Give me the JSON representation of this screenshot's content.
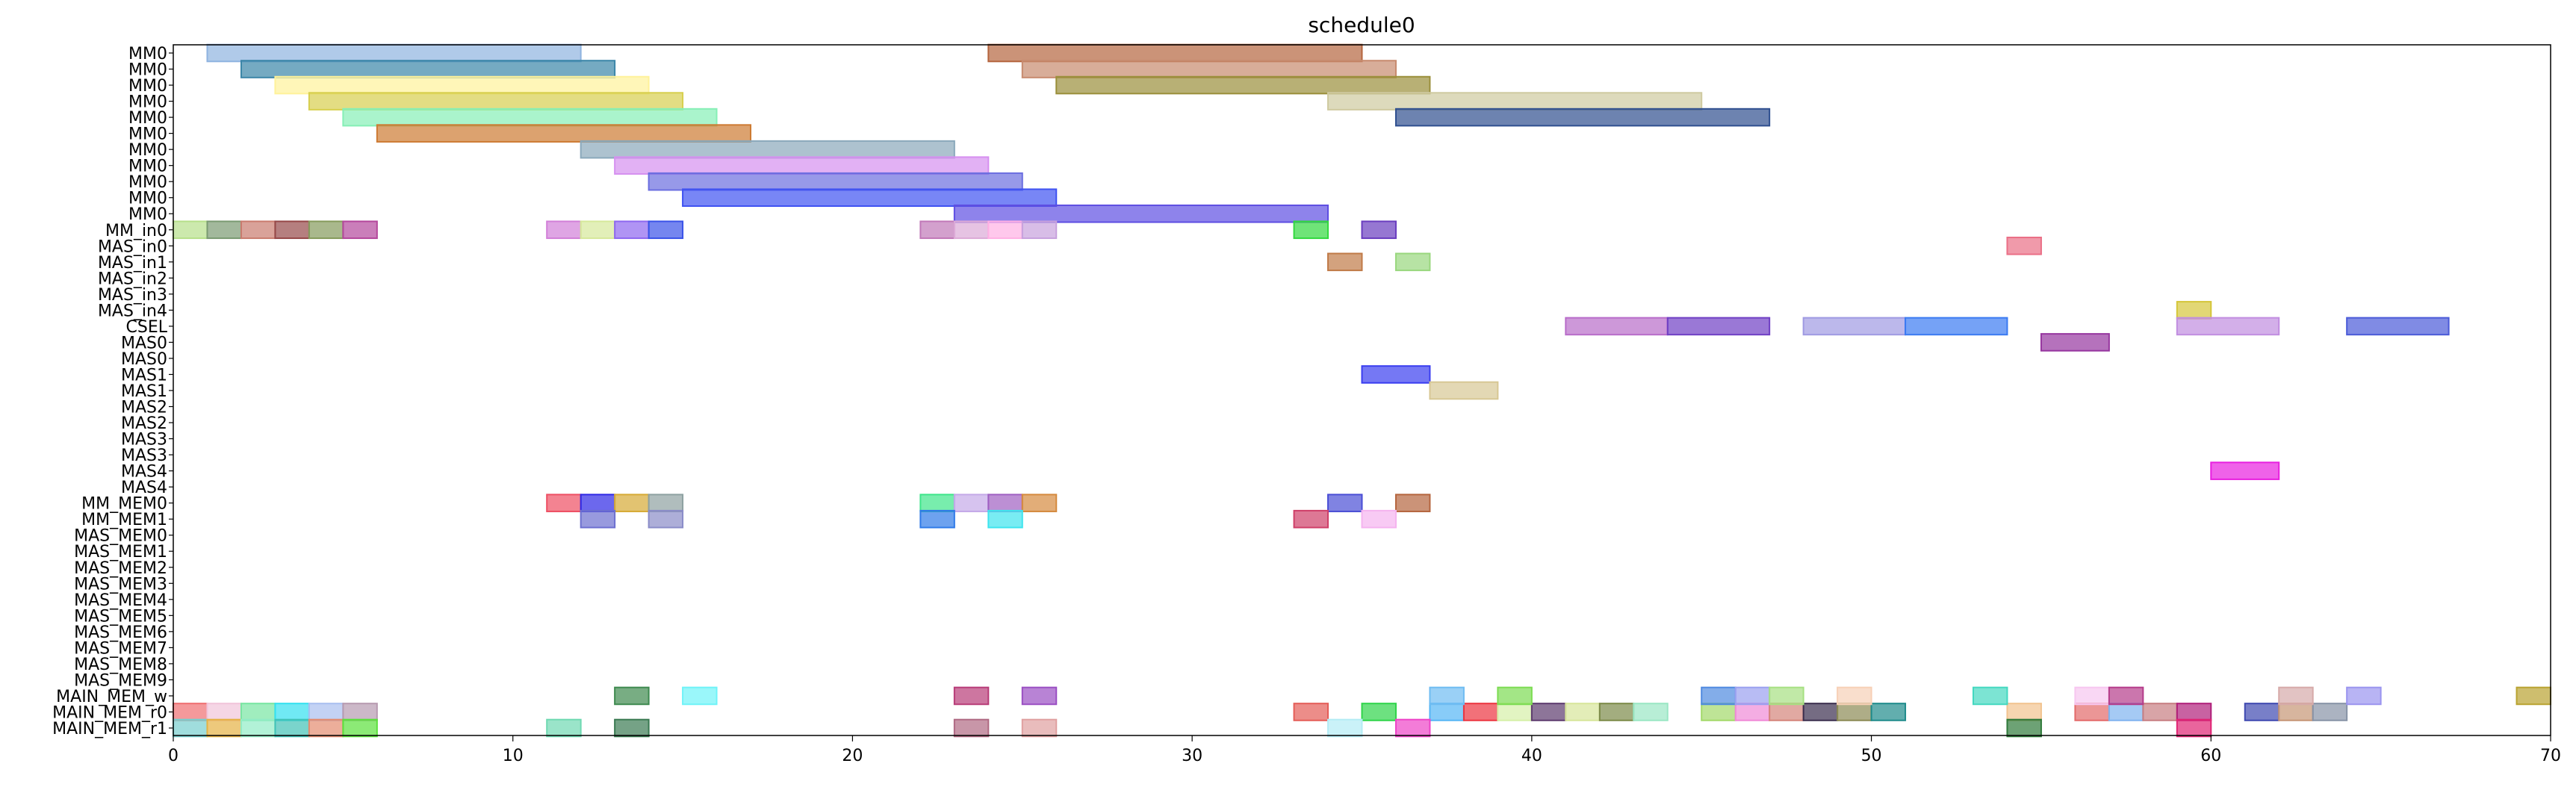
{
  "chart_data": {
    "type": "gantt",
    "title": "schedule0",
    "xlabel": "",
    "ylabel": "",
    "xlim": [
      0,
      70
    ],
    "grid": false,
    "x_ticks": [
      0,
      10,
      20,
      30,
      40,
      50,
      60,
      70
    ],
    "rows": [
      "MM0",
      "MM0",
      "MM0",
      "MM0",
      "MM0",
      "MM0",
      "MM0",
      "MM0",
      "MM0",
      "MM0",
      "MM0",
      "MM_in0",
      "MAS_in0",
      "MAS_in1",
      "MAS_in2",
      "MAS_in3",
      "MAS_in4",
      "CSEL",
      "MAS0",
      "MAS0",
      "MAS1",
      "MAS1",
      "MAS2",
      "MAS2",
      "MAS3",
      "MAS3",
      "MAS4",
      "MAS4",
      "MM_MEM0",
      "MM_MEM1",
      "MAS_MEM0",
      "MAS_MEM1",
      "MAS_MEM2",
      "MAS_MEM3",
      "MAS_MEM4",
      "MAS_MEM5",
      "MAS_MEM6",
      "MAS_MEM7",
      "MAS_MEM8",
      "MAS_MEM9",
      "MAIN_MEM_w",
      "MAIN_MEM_r0",
      "MAIN_MEM_r1"
    ],
    "bars": [
      {
        "row": 0,
        "start": 1,
        "end": 12,
        "color": "#8fb3e0"
      },
      {
        "row": 0,
        "start": 24,
        "end": 35,
        "color": "#b5653e"
      },
      {
        "row": 1,
        "start": 2,
        "end": 13,
        "color": "#3b86a8"
      },
      {
        "row": 1,
        "start": 25,
        "end": 36,
        "color": "#c78a6e"
      },
      {
        "row": 2,
        "start": 3,
        "end": 14,
        "color": "#fff29a"
      },
      {
        "row": 2,
        "start": 26,
        "end": 37,
        "color": "#9a8f3a"
      },
      {
        "row": 3,
        "start": 4,
        "end": 15,
        "color": "#d7cf4e"
      },
      {
        "row": 3,
        "start": 34,
        "end": 45,
        "color": "#cfcaa0"
      },
      {
        "row": 4,
        "start": 5,
        "end": 16,
        "color": "#86efb6"
      },
      {
        "row": 4,
        "start": 36,
        "end": 47,
        "color": "#2f4f8f"
      },
      {
        "row": 5,
        "start": 6,
        "end": 17,
        "color": "#cd7a32"
      },
      {
        "row": 6,
        "start": 12,
        "end": 23,
        "color": "#8aa8bb"
      },
      {
        "row": 7,
        "start": 13,
        "end": 24,
        "color": "#d690f0"
      },
      {
        "row": 8,
        "start": 14,
        "end": 25,
        "color": "#6b6ee0"
      },
      {
        "row": 9,
        "start": 15,
        "end": 26,
        "color": "#3f52f2"
      },
      {
        "row": 10,
        "start": 23,
        "end": 34,
        "color": "#5e4ee2"
      },
      {
        "row": 11,
        "start": 0,
        "end": 1,
        "color": "#b6df8a"
      },
      {
        "row": 11,
        "start": 1,
        "end": 2,
        "color": "#7a9a72"
      },
      {
        "row": 11,
        "start": 2,
        "end": 3,
        "color": "#c97b6e"
      },
      {
        "row": 11,
        "start": 3,
        "end": 4,
        "color": "#964848"
      },
      {
        "row": 11,
        "start": 4,
        "end": 5,
        "color": "#859a5b"
      },
      {
        "row": 11,
        "start": 5,
        "end": 6,
        "color": "#b4479c"
      },
      {
        "row": 11,
        "start": 11,
        "end": 12,
        "color": "#d27fd8"
      },
      {
        "row": 11,
        "start": 12,
        "end": 13,
        "color": "#d6e89a"
      },
      {
        "row": 11,
        "start": 13,
        "end": 14,
        "color": "#8e67f0"
      },
      {
        "row": 11,
        "start": 14,
        "end": 15,
        "color": "#3a52e8"
      },
      {
        "row": 11,
        "start": 22,
        "end": 23,
        "color": "#c178b8"
      },
      {
        "row": 11,
        "start": 23,
        "end": 24,
        "color": "#dcaad7"
      },
      {
        "row": 11,
        "start": 24,
        "end": 25,
        "color": "#ffb0e4"
      },
      {
        "row": 11,
        "start": 25,
        "end": 26,
        "color": "#c7a1dd"
      },
      {
        "row": 11,
        "start": 33,
        "end": 34,
        "color": "#32d93f"
      },
      {
        "row": 11,
        "start": 35,
        "end": 36,
        "color": "#6a3dbf"
      },
      {
        "row": 12,
        "start": 54,
        "end": 55,
        "color": "#ea6f86"
      },
      {
        "row": 13,
        "start": 34,
        "end": 35,
        "color": "#c07a47"
      },
      {
        "row": 13,
        "start": 36,
        "end": 37,
        "color": "#99d77e"
      },
      {
        "row": 16,
        "start": 59,
        "end": 60,
        "color": "#d5c63a"
      },
      {
        "row": 17,
        "start": 41,
        "end": 44,
        "color": "#b86cc9"
      },
      {
        "row": 17,
        "start": 44,
        "end": 47,
        "color": "#6f3fc4"
      },
      {
        "row": 17,
        "start": 48,
        "end": 51,
        "color": "#9f9ae2"
      },
      {
        "row": 17,
        "start": 51,
        "end": 54,
        "color": "#3a7af2"
      },
      {
        "row": 17,
        "start": 59,
        "end": 62,
        "color": "#c18de0"
      },
      {
        "row": 17,
        "start": 64,
        "end": 67,
        "color": "#4a5ad8"
      },
      {
        "row": 18,
        "start": 55,
        "end": 57,
        "color": "#96369f"
      },
      {
        "row": 20,
        "start": 35,
        "end": 37,
        "color": "#3a3ef0"
      },
      {
        "row": 21,
        "start": 37,
        "end": 39,
        "color": "#d7c794"
      },
      {
        "row": 26,
        "start": 60,
        "end": 62,
        "color": "#e81fe0"
      },
      {
        "row": 28,
        "start": 11,
        "end": 12,
        "color": "#ee4f63"
      },
      {
        "row": 28,
        "start": 12,
        "end": 13,
        "color": "#2e28e5"
      },
      {
        "row": 28,
        "start": 13,
        "end": 14,
        "color": "#d6aa35"
      },
      {
        "row": 28,
        "start": 14,
        "end": 15,
        "color": "#8ea1a1"
      },
      {
        "row": 28,
        "start": 22,
        "end": 23,
        "color": "#3ee58a"
      },
      {
        "row": 28,
        "start": 23,
        "end": 24,
        "color": "#c4a9e8"
      },
      {
        "row": 28,
        "start": 24,
        "end": 25,
        "color": "#9f60c2"
      },
      {
        "row": 28,
        "start": 25,
        "end": 26,
        "color": "#d58a3e"
      },
      {
        "row": 28,
        "start": 34,
        "end": 35,
        "color": "#4a4ed5"
      },
      {
        "row": 28,
        "start": 36,
        "end": 37,
        "color": "#b5653e"
      },
      {
        "row": 29,
        "start": 12,
        "end": 13,
        "color": "#6c6fd0"
      },
      {
        "row": 29,
        "start": 14,
        "end": 15,
        "color": "#8a8cc8"
      },
      {
        "row": 29,
        "start": 22,
        "end": 23,
        "color": "#2f7ae8"
      },
      {
        "row": 29,
        "start": 24,
        "end": 25,
        "color": "#3ee4ee"
      },
      {
        "row": 29,
        "start": 33,
        "end": 34,
        "color": "#cf3f68"
      },
      {
        "row": 29,
        "start": 35,
        "end": 36,
        "color": "#f5b3ef"
      },
      {
        "row": 40,
        "start": 13,
        "end": 14,
        "color": "#3e8a4f"
      },
      {
        "row": 40,
        "start": 15,
        "end": 16,
        "color": "#6ff3f8"
      },
      {
        "row": 40,
        "start": 23,
        "end": 24,
        "color": "#b83c78"
      },
      {
        "row": 40,
        "start": 25,
        "end": 26,
        "color": "#9a4fc3"
      },
      {
        "row": 41,
        "start": 0,
        "end": 1,
        "color": "#ef6e70"
      },
      {
        "row": 41,
        "start": 1,
        "end": 2,
        "color": "#f1c4da"
      },
      {
        "row": 41,
        "start": 2,
        "end": 3,
        "color": "#78e6a2"
      },
      {
        "row": 41,
        "start": 3,
        "end": 4,
        "color": "#33e0f0"
      },
      {
        "row": 41,
        "start": 4,
        "end": 5,
        "color": "#a9bff0"
      },
      {
        "row": 41,
        "start": 5,
        "end": 6,
        "color": "#b79ab0"
      },
      {
        "row": 41,
        "start": 33,
        "end": 34,
        "color": "#e45d57"
      },
      {
        "row": 41,
        "start": 35,
        "end": 36,
        "color": "#2fd44a"
      },
      {
        "row": 41,
        "start": 37,
        "end": 38,
        "color": "#56b6f5"
      },
      {
        "row": 41,
        "start": 38,
        "end": 39,
        "color": "#ec3540"
      },
      {
        "row": 41,
        "start": 39,
        "end": 40,
        "color": "#d6f0a8"
      },
      {
        "row": 41,
        "start": 40,
        "end": 41,
        "color": "#5d3a6e"
      },
      {
        "row": 41,
        "start": 41,
        "end": 42,
        "color": "#d7e59a"
      },
      {
        "row": 41,
        "start": 42,
        "end": 43,
        "color": "#7c8a48"
      },
      {
        "row": 41,
        "start": 43,
        "end": 44,
        "color": "#9ae7c4"
      },
      {
        "row": 41,
        "start": 45,
        "end": 46,
        "color": "#a3d96a"
      },
      {
        "row": 41,
        "start": 46,
        "end": 47,
        "color": "#f08ad7"
      },
      {
        "row": 41,
        "start": 47,
        "end": 48,
        "color": "#d4847a"
      },
      {
        "row": 41,
        "start": 48,
        "end": 49,
        "color": "#3b2e4e"
      },
      {
        "row": 41,
        "start": 49,
        "end": 50,
        "color": "#8b8a54"
      },
      {
        "row": 41,
        "start": 50,
        "end": 51,
        "color": "#1f8b8b"
      },
      {
        "row": 41,
        "start": 54,
        "end": 55,
        "color": "#f2c38f"
      },
      {
        "row": 41,
        "start": 56,
        "end": 57,
        "color": "#e36a6a"
      },
      {
        "row": 41,
        "start": 57,
        "end": 58,
        "color": "#7fb3ef"
      },
      {
        "row": 41,
        "start": 58,
        "end": 59,
        "color": "#c77e82"
      },
      {
        "row": 41,
        "start": 59,
        "end": 60,
        "color": "#b0207a"
      },
      {
        "row": 41,
        "start": 61,
        "end": 62,
        "color": "#3e48b0"
      },
      {
        "row": 41,
        "start": 62,
        "end": 63,
        "color": "#c69575"
      },
      {
        "row": 41,
        "start": 63,
        "end": 64,
        "color": "#8793a6"
      },
      {
        "row": 42,
        "start": 0,
        "end": 1,
        "color": "#77cfcf"
      },
      {
        "row": 42,
        "start": 1,
        "end": 2,
        "color": "#e5b244"
      },
      {
        "row": 42,
        "start": 2,
        "end": 3,
        "color": "#92ecc6"
      },
      {
        "row": 42,
        "start": 3,
        "end": 4,
        "color": "#41c2b7"
      },
      {
        "row": 42,
        "start": 4,
        "end": 5,
        "color": "#e48c6f"
      },
      {
        "row": 42,
        "start": 5,
        "end": 6,
        "color": "#5be13c"
      },
      {
        "row": 42,
        "start": 11,
        "end": 12,
        "color": "#6fd9b2"
      },
      {
        "row": 42,
        "start": 13,
        "end": 14,
        "color": "#3a7a52"
      },
      {
        "row": 42,
        "start": 23,
        "end": 24,
        "color": "#b06a83"
      },
      {
        "row": 42,
        "start": 25,
        "end": 26,
        "color": "#e0a0a0"
      },
      {
        "row": 42,
        "start": 34,
        "end": 35,
        "color": "#b4ecf5"
      },
      {
        "row": 42,
        "start": 36,
        "end": 37,
        "color": "#ee44c8"
      },
      {
        "row": 42,
        "start": 54,
        "end": 55,
        "color": "#2f7a3a"
      },
      {
        "row": 42,
        "start": 59,
        "end": 60,
        "color": "#e02474"
      },
      {
        "row": 40,
        "start": 45,
        "end": 46,
        "color": "#4f8ae0"
      },
      {
        "row": 40,
        "start": 46,
        "end": 47,
        "color": "#9aa0f0"
      },
      {
        "row": 40,
        "start": 47,
        "end": 48,
        "color": "#a6e082"
      },
      {
        "row": 40,
        "start": 49,
        "end": 50,
        "color": "#f7d0b6"
      },
      {
        "row": 40,
        "start": 53,
        "end": 54,
        "color": "#44d8c0"
      },
      {
        "row": 40,
        "start": 56,
        "end": 57,
        "color": "#f7c6f0"
      },
      {
        "row": 40,
        "start": 57,
        "end": 58,
        "color": "#b53c8a"
      },
      {
        "row": 40,
        "start": 62,
        "end": 63,
        "color": "#d6aaa9"
      },
      {
        "row": 40,
        "start": 64,
        "end": 65,
        "color": "#9a94ef"
      },
      {
        "row": 40,
        "start": 69,
        "end": 70,
        "color": "#b9a331"
      },
      {
        "row": 40,
        "start": 37,
        "end": 38,
        "color": "#6fbcf2"
      },
      {
        "row": 40,
        "start": 39,
        "end": 40,
        "color": "#7cdc52"
      }
    ]
  }
}
